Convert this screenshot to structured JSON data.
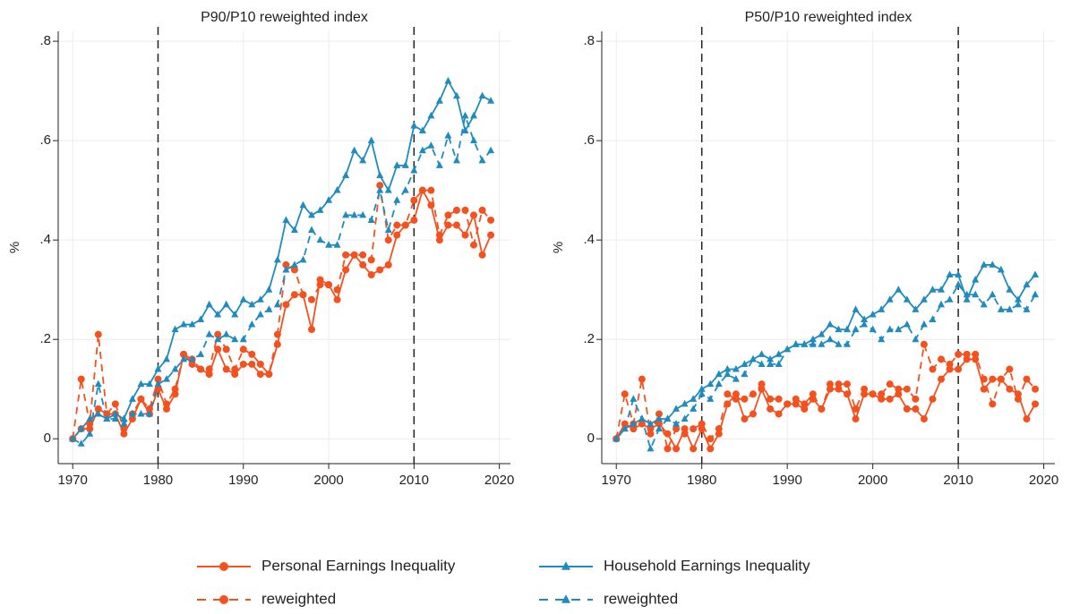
{
  "chart_data": [
    {
      "type": "line",
      "title": "P90/P10 reweighted index",
      "ylabel": "%",
      "x": [
        1970,
        1971,
        1972,
        1973,
        1974,
        1975,
        1976,
        1977,
        1978,
        1979,
        1980,
        1981,
        1982,
        1983,
        1984,
        1985,
        1986,
        1987,
        1988,
        1989,
        1990,
        1991,
        1992,
        1993,
        1994,
        1995,
        1996,
        1997,
        1998,
        1999,
        2000,
        2001,
        2002,
        2003,
        2004,
        2005,
        2006,
        2007,
        2008,
        2009,
        2010,
        2011,
        2012,
        2013,
        2014,
        2015,
        2016,
        2017,
        2018,
        2019
      ],
      "xlim": [
        1968.3,
        2021.3
      ],
      "xticks": [
        1970,
        1980,
        1990,
        2000,
        2010,
        2020
      ],
      "ylim": [
        -0.05,
        0.82
      ],
      "yticks": [
        0,
        {
          "value": 0.2,
          "label": ".2"
        },
        {
          "value": 0.4,
          "label": ".4"
        },
        {
          "value": 0.6,
          "label": ".6"
        },
        {
          "value": 0.8,
          "label": ".8"
        }
      ],
      "grid": true,
      "vlines": [
        1980,
        2010
      ],
      "series": [
        {
          "name": "Personal Earnings Inequality",
          "color": "#f4511e",
          "marker": "circle",
          "dashed": false,
          "values": [
            0,
            0.02,
            0.02,
            0.06,
            0.05,
            0.05,
            0.01,
            0.04,
            0.08,
            0.05,
            0.1,
            0.06,
            0.09,
            0.17,
            0.15,
            0.14,
            0.13,
            0.18,
            0.14,
            0.13,
            0.15,
            0.15,
            0.13,
            0.13,
            0.19,
            0.27,
            0.29,
            0.29,
            0.22,
            0.32,
            0.31,
            0.28,
            0.34,
            0.37,
            0.35,
            0.33,
            0.34,
            0.35,
            0.41,
            0.43,
            0.44,
            0.5,
            0.47,
            0.4,
            0.43,
            0.43,
            0.41,
            0.45,
            0.37,
            0.41
          ]
        },
        {
          "name": "reweighted",
          "color": "#f4511e",
          "marker": "circle",
          "dashed": true,
          "values": [
            0,
            0.12,
            0.03,
            0.21,
            0.05,
            0.07,
            0.02,
            0.05,
            0.08,
            0.06,
            0.12,
            0.07,
            0.1,
            0.17,
            0.16,
            0.14,
            0.14,
            0.21,
            0.18,
            0.14,
            0.18,
            0.17,
            0.15,
            0.13,
            0.21,
            0.35,
            0.34,
            0.29,
            0.28,
            0.31,
            0.31,
            0.3,
            0.37,
            0.37,
            0.37,
            0.36,
            0.51,
            0.4,
            0.43,
            0.43,
            0.48,
            0.5,
            0.5,
            0.41,
            0.45,
            0.46,
            0.46,
            0.39,
            0.46,
            0.44
          ]
        },
        {
          "name": "Household Earnings Inequality",
          "color": "#1f8bbf",
          "marker": "triangle",
          "dashed": false,
          "values": [
            0,
            0.02,
            0.04,
            0.05,
            0.04,
            0.05,
            0.04,
            0.08,
            0.11,
            0.11,
            0.14,
            0.16,
            0.22,
            0.23,
            0.23,
            0.24,
            0.27,
            0.25,
            0.27,
            0.25,
            0.28,
            0.27,
            0.28,
            0.3,
            0.36,
            0.44,
            0.42,
            0.47,
            0.45,
            0.46,
            0.48,
            0.5,
            0.53,
            0.58,
            0.56,
            0.6,
            0.53,
            0.5,
            0.55,
            0.55,
            0.63,
            0.62,
            0.65,
            0.68,
            0.72,
            0.69,
            0.62,
            0.65,
            0.69,
            0.68
          ]
        },
        {
          "name": "reweighted",
          "color": "#1f8bbf",
          "marker": "triangle",
          "dashed": true,
          "values": [
            0,
            -0.01,
            0.01,
            0.11,
            0.04,
            0.04,
            0.03,
            0.05,
            0.05,
            0.05,
            0.11,
            0.12,
            0.14,
            0.16,
            0.16,
            0.17,
            0.21,
            0.2,
            0.21,
            0.2,
            0.2,
            0.23,
            0.25,
            0.26,
            0.27,
            0.34,
            0.35,
            0.36,
            0.42,
            0.4,
            0.39,
            0.39,
            0.45,
            0.45,
            0.45,
            0.44,
            0.5,
            0.42,
            0.48,
            0.5,
            0.54,
            0.58,
            0.59,
            0.55,
            0.61,
            0.56,
            0.65,
            0.6,
            0.56,
            0.58
          ]
        }
      ]
    },
    {
      "type": "line",
      "title": "P50/P10 reweighted index",
      "ylabel": "%",
      "x": [
        1970,
        1971,
        1972,
        1973,
        1974,
        1975,
        1976,
        1977,
        1978,
        1979,
        1980,
        1981,
        1982,
        1983,
        1984,
        1985,
        1986,
        1987,
        1988,
        1989,
        1990,
        1991,
        1992,
        1993,
        1994,
        1995,
        1996,
        1997,
        1998,
        1999,
        2000,
        2001,
        2002,
        2003,
        2004,
        2005,
        2006,
        2007,
        2008,
        2009,
        2010,
        2011,
        2012,
        2013,
        2014,
        2015,
        2016,
        2017,
        2018,
        2019
      ],
      "xlim": [
        1968.3,
        2021.3
      ],
      "xticks": [
        1970,
        1980,
        1990,
        2000,
        2010,
        2020
      ],
      "ylim": [
        -0.05,
        0.82
      ],
      "yticks": [
        0,
        {
          "value": 0.2,
          "label": ".2"
        },
        {
          "value": 0.4,
          "label": ".4"
        },
        {
          "value": 0.6,
          "label": ".6"
        },
        {
          "value": 0.8,
          "label": ".8"
        }
      ],
      "grid": true,
      "vlines": [
        1980,
        2010
      ],
      "series": [
        {
          "color": "#f4511e",
          "marker": "circle",
          "dashed": false,
          "values": [
            0,
            0.03,
            0.02,
            0.03,
            0.02,
            0.03,
            0.01,
            -0.02,
            0.02,
            -0.02,
            0.02,
            -0.02,
            0.01,
            0.07,
            0.09,
            0.04,
            0.05,
            0.1,
            0.06,
            0.05,
            0.07,
            0.07,
            0.06,
            0.08,
            0.06,
            0.1,
            0.1,
            0.09,
            0.04,
            0.09,
            0.09,
            0.08,
            0.08,
            0.09,
            0.06,
            0.06,
            0.04,
            0.08,
            0.12,
            0.14,
            0.14,
            0.16,
            0.16,
            0.1,
            0.12,
            0.12,
            0.1,
            0.09,
            0.04,
            0.07
          ]
        },
        {
          "color": "#f4511e",
          "marker": "circle",
          "dashed": true,
          "values": [
            0,
            0.09,
            0.03,
            0.12,
            0.01,
            0.05,
            -0.02,
            0.02,
            0.01,
            0.02,
            0.03,
            0,
            0.02,
            0.09,
            0.08,
            0.08,
            0.09,
            0.11,
            0.08,
            0.08,
            0.07,
            0.08,
            0.07,
            0.09,
            0.06,
            0.11,
            0.11,
            0.11,
            0.06,
            0.1,
            0.09,
            0.09,
            0.11,
            0.1,
            0.1,
            0.08,
            0.19,
            0.14,
            0.16,
            0.15,
            0.17,
            0.17,
            0.17,
            0.12,
            0.07,
            0.12,
            0.14,
            0.08,
            0.12,
            0.1
          ]
        },
        {
          "color": "#1f8bbf",
          "marker": "triangle",
          "dashed": false,
          "values": [
            0,
            0.02,
            0.03,
            0.04,
            0.03,
            0.04,
            0.04,
            0.06,
            0.07,
            0.08,
            0.1,
            0.11,
            0.13,
            0.14,
            0.14,
            0.15,
            0.16,
            0.17,
            0.16,
            0.17,
            0.18,
            0.19,
            0.19,
            0.2,
            0.21,
            0.23,
            0.22,
            0.22,
            0.26,
            0.24,
            0.25,
            0.26,
            0.28,
            0.3,
            0.28,
            0.26,
            0.28,
            0.3,
            0.3,
            0.33,
            0.33,
            0.28,
            0.32,
            0.35,
            0.35,
            0.34,
            0.3,
            0.28,
            0.31,
            0.33
          ]
        },
        {
          "color": "#1f8bbf",
          "marker": "triangle",
          "dashed": true,
          "values": [
            0,
            0.02,
            0.08,
            0.04,
            -0.02,
            0.02,
            0.04,
            0.03,
            0.04,
            0.06,
            0.09,
            0.08,
            0.11,
            0.13,
            0.12,
            0.13,
            0.16,
            0.15,
            0.15,
            0.15,
            0.18,
            0.19,
            0.19,
            0.19,
            0.19,
            0.2,
            0.19,
            0.19,
            0.22,
            0.23,
            0.22,
            0.2,
            0.22,
            0.22,
            0.23,
            0.2,
            0.23,
            0.24,
            0.27,
            0.28,
            0.31,
            0.29,
            0.29,
            0.27,
            0.29,
            0.26,
            0.26,
            0.27,
            0.26,
            0.29
          ]
        }
      ]
    }
  ]
}
